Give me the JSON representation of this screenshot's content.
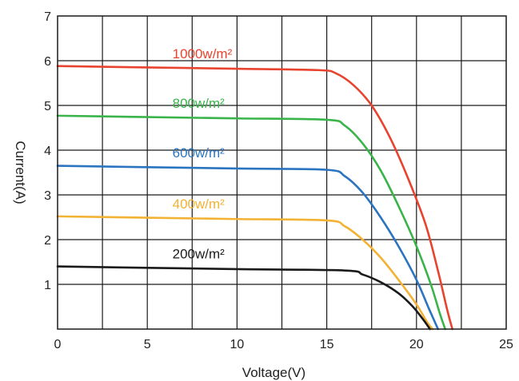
{
  "chart_data": {
    "type": "line",
    "title": "",
    "xlabel": "Voltage(V)",
    "ylabel": "Current(A)",
    "xlim": [
      0,
      25
    ],
    "ylim": [
      0,
      7
    ],
    "x_ticks": [
      "0",
      "5",
      "10",
      "15",
      "20",
      "25"
    ],
    "y_ticks": [
      "1",
      "2",
      "3",
      "4",
      "5",
      "6",
      "7"
    ],
    "grid": true,
    "legend": "inline labels above curves",
    "series": [
      {
        "name": "1000w/m²",
        "color": "#e8432e",
        "label_pos": [
          6.4,
          6.05
        ],
        "points": [
          [
            0,
            5.88
          ],
          [
            5,
            5.85
          ],
          [
            10,
            5.82
          ],
          [
            14.5,
            5.79
          ],
          [
            15.5,
            5.72
          ],
          [
            16.5,
            5.45
          ],
          [
            17.5,
            5.0
          ],
          [
            18.5,
            4.3
          ],
          [
            19.5,
            3.4
          ],
          [
            20.5,
            2.35
          ],
          [
            21.2,
            1.3
          ],
          [
            21.7,
            0.45
          ],
          [
            22.0,
            0
          ]
        ]
      },
      {
        "name": "800w/m²",
        "color": "#3ab44a",
        "label_pos": [
          6.4,
          4.95
        ],
        "points": [
          [
            0,
            4.77
          ],
          [
            5,
            4.74
          ],
          [
            10,
            4.71
          ],
          [
            15.0,
            4.68
          ],
          [
            16.0,
            4.55
          ],
          [
            17.0,
            4.15
          ],
          [
            18.0,
            3.55
          ],
          [
            19.0,
            2.75
          ],
          [
            20.0,
            1.85
          ],
          [
            20.8,
            1.0
          ],
          [
            21.3,
            0.35
          ],
          [
            21.6,
            0
          ]
        ]
      },
      {
        "name": "600w/m²",
        "color": "#2a74c0",
        "label_pos": [
          6.4,
          3.84
        ],
        "points": [
          [
            0,
            3.65
          ],
          [
            5,
            3.62
          ],
          [
            10,
            3.59
          ],
          [
            15.0,
            3.56
          ],
          [
            16.0,
            3.42
          ],
          [
            17.0,
            3.05
          ],
          [
            18.0,
            2.5
          ],
          [
            19.0,
            1.85
          ],
          [
            20.0,
            1.1
          ],
          [
            20.7,
            0.45
          ],
          [
            21.2,
            0
          ]
        ]
      },
      {
        "name": "400w/m²",
        "color": "#f2b233",
        "label_pos": [
          6.4,
          2.7
        ],
        "points": [
          [
            0,
            2.52
          ],
          [
            5,
            2.49
          ],
          [
            10,
            2.46
          ],
          [
            15.0,
            2.43
          ],
          [
            16.0,
            2.3
          ],
          [
            17.0,
            2.0
          ],
          [
            18.0,
            1.6
          ],
          [
            19.0,
            1.1
          ],
          [
            20.0,
            0.55
          ],
          [
            20.6,
            0.15
          ],
          [
            20.9,
            0
          ]
        ]
      },
      {
        "name": "200w/m²",
        "color": "#1a1a1a",
        "label_pos": [
          6.4,
          1.58
        ],
        "points": [
          [
            0,
            1.4
          ],
          [
            5,
            1.37
          ],
          [
            10,
            1.34
          ],
          [
            16.0,
            1.31
          ],
          [
            17.0,
            1.22
          ],
          [
            18.0,
            1.05
          ],
          [
            19.0,
            0.8
          ],
          [
            19.8,
            0.5
          ],
          [
            20.4,
            0.2
          ],
          [
            20.75,
            0
          ]
        ]
      }
    ]
  }
}
